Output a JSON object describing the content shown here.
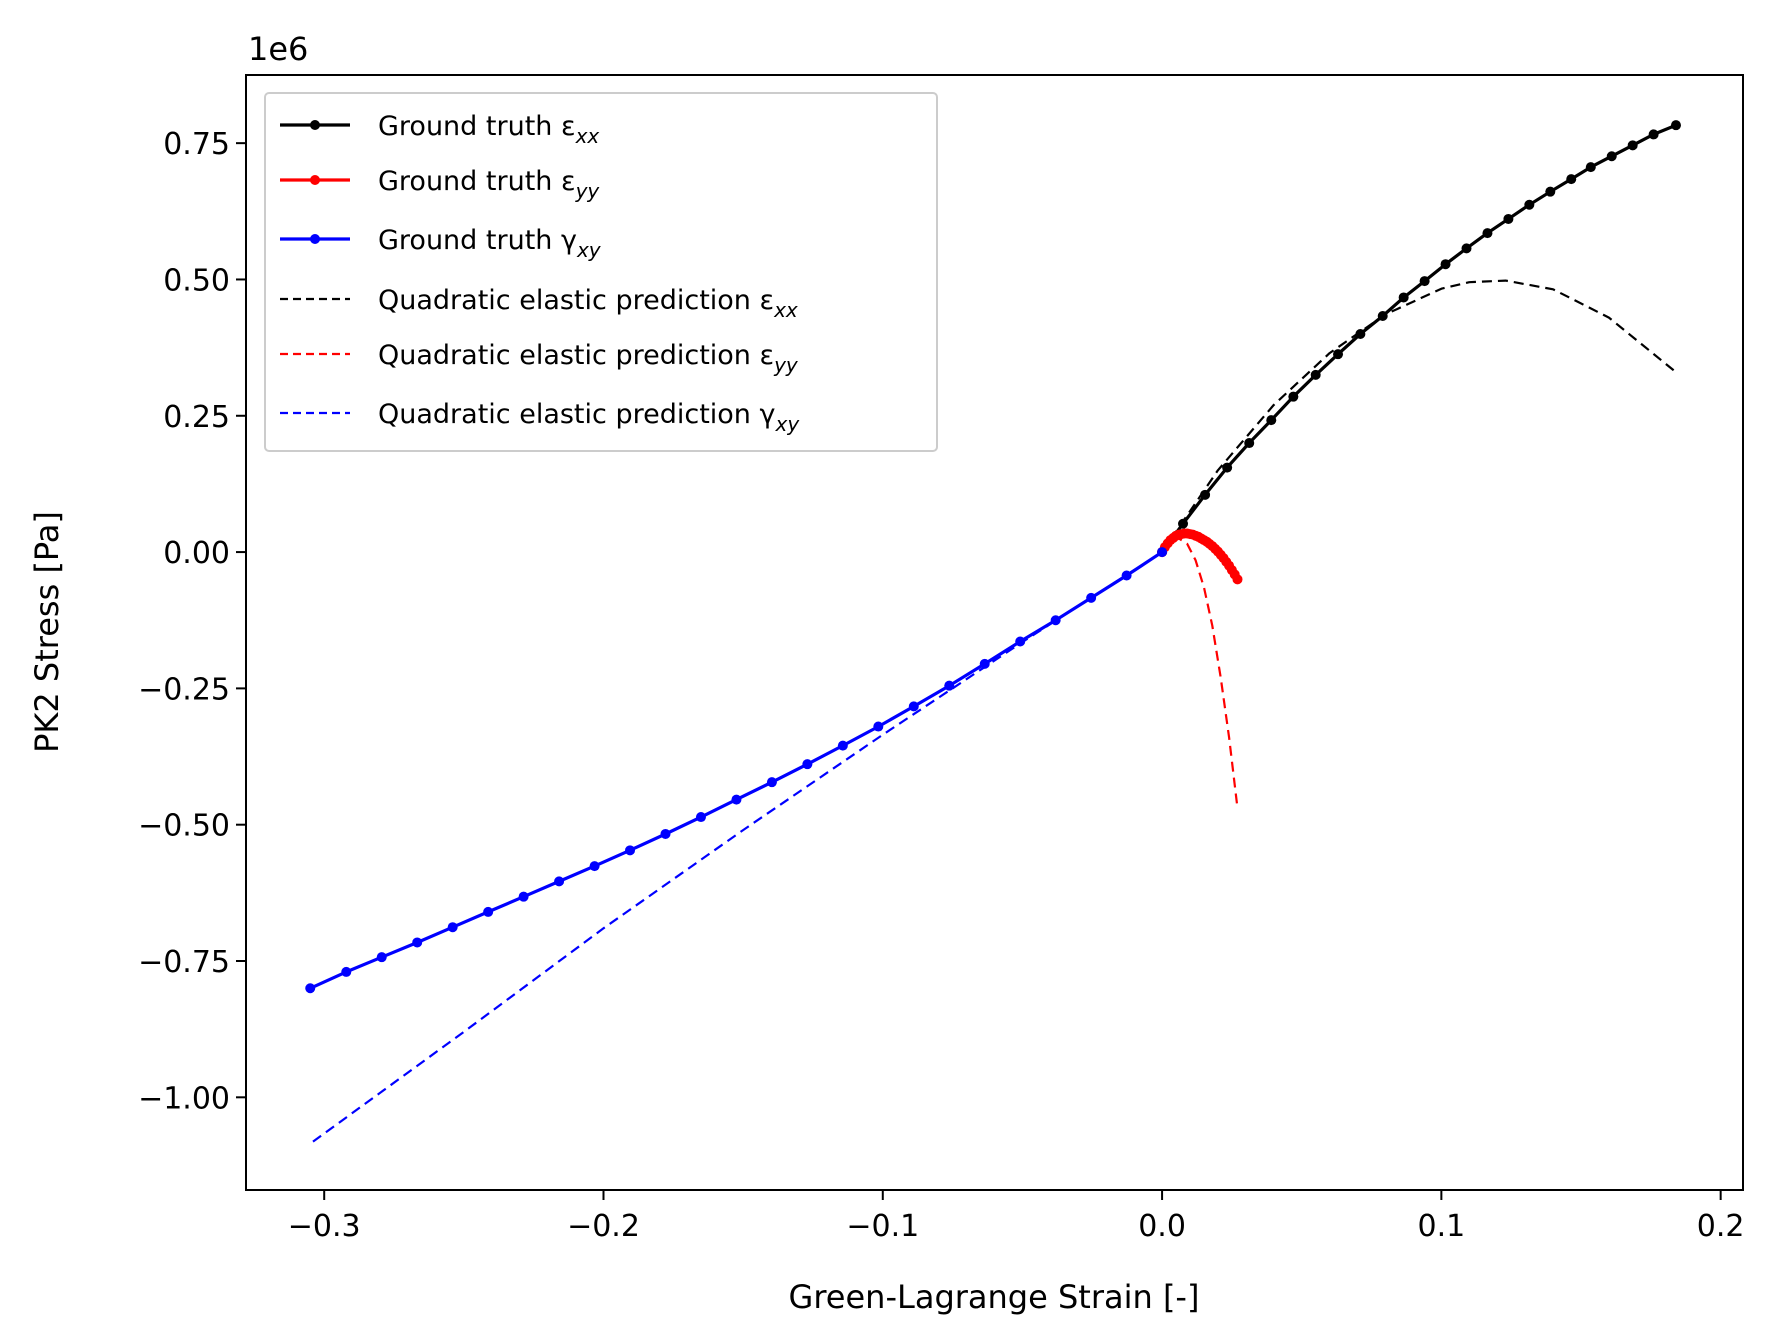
{
  "chart_data": {
    "type": "line",
    "xlabel": "Green-Lagrange Strain [-]",
    "ylabel": "PK2 Stress [Pa]",
    "y_offset_text": "1e6",
    "xlim": [
      -0.328,
      0.208
    ],
    "ylim": [
      -1.17,
      0.875
    ],
    "xticks": [
      -0.3,
      -0.2,
      -0.1,
      0.0,
      0.1,
      0.2
    ],
    "xtick_labels": [
      "−0.3",
      "−0.2",
      "−0.1",
      "0.0",
      "0.1",
      "0.2"
    ],
    "yticks": [
      0.75,
      0.5,
      0.25,
      0.0,
      -0.25,
      -0.5,
      -0.75,
      -1.0
    ],
    "ytick_labels": [
      "0.75",
      "0.50",
      "0.25",
      "0.00",
      "−0.25",
      "−0.50",
      "−0.75",
      "−1.00"
    ],
    "grid": false,
    "legend_position": "top-left",
    "series": [
      {
        "name": "Ground truth εxx",
        "legend_main": "Ground truth ε",
        "legend_sub": "xx",
        "color": "#000000",
        "style": "solid-marker",
        "x": [
          0.0,
          0.0075,
          0.0154,
          0.0233,
          0.0312,
          0.0391,
          0.047,
          0.055,
          0.063,
          0.071,
          0.079,
          0.0865,
          0.094,
          0.1015,
          0.109,
          0.1165,
          0.124,
          0.1315,
          0.139,
          0.1465,
          0.1535,
          0.161,
          0.1685,
          0.176,
          0.184
        ],
        "y": [
          0.0,
          0.052,
          0.105,
          0.155,
          0.2,
          0.242,
          0.285,
          0.325,
          0.363,
          0.4,
          0.433,
          0.467,
          0.497,
          0.528,
          0.557,
          0.585,
          0.611,
          0.637,
          0.661,
          0.684,
          0.706,
          0.726,
          0.746,
          0.766,
          0.783
        ]
      },
      {
        "name": "Ground truth εyy",
        "legend_main": "Ground truth ε",
        "legend_sub": "yy",
        "color": "#ff0000",
        "style": "solid-marker",
        "x": [
          0.0,
          0.001,
          0.002,
          0.003,
          0.004,
          0.005,
          0.006,
          0.007,
          0.008,
          0.009,
          0.01,
          0.011,
          0.012,
          0.013,
          0.014,
          0.015,
          0.016,
          0.017,
          0.018,
          0.019,
          0.02,
          0.021,
          0.022,
          0.023,
          0.024,
          0.025,
          0.026,
          0.027
        ],
        "y": [
          0.0,
          0.009,
          0.016,
          0.022,
          0.026,
          0.03,
          0.032,
          0.033,
          0.034,
          0.034,
          0.033,
          0.032,
          0.03,
          0.028,
          0.025,
          0.022,
          0.019,
          0.015,
          0.011,
          0.006,
          0.001,
          -0.005,
          -0.011,
          -0.018,
          -0.025,
          -0.033,
          -0.041,
          -0.05
        ]
      },
      {
        "name": "Ground truth γxy",
        "legend_main": "Ground truth γ",
        "legend_sub": "xy",
        "color": "#0000ff",
        "style": "solid-marker",
        "x": [
          0.0,
          -0.0127,
          -0.0254,
          -0.0381,
          -0.0508,
          -0.0635,
          -0.0762,
          -0.0889,
          -0.1016,
          -0.1143,
          -0.127,
          -0.1397,
          -0.1524,
          -0.1651,
          -0.1778,
          -0.1905,
          -0.2032,
          -0.2159,
          -0.2286,
          -0.2413,
          -0.254,
          -0.2667,
          -0.2794,
          -0.2921,
          -0.305
        ],
        "y": [
          0.0,
          -0.043,
          -0.084,
          -0.125,
          -0.164,
          -0.205,
          -0.245,
          -0.283,
          -0.32,
          -0.355,
          -0.389,
          -0.422,
          -0.454,
          -0.486,
          -0.517,
          -0.547,
          -0.576,
          -0.604,
          -0.632,
          -0.66,
          -0.688,
          -0.716,
          -0.743,
          -0.77,
          -0.8
        ]
      },
      {
        "name": "Quadratic elastic prediction εxx",
        "legend_main": "Quadratic elastic prediction ε",
        "legend_sub": "xx",
        "color": "#000000",
        "style": "dashed",
        "x": [
          0.0,
          0.02,
          0.04,
          0.06,
          0.08,
          0.1,
          0.11,
          0.123,
          0.14,
          0.16,
          0.184
        ],
        "y": [
          0.0,
          0.15,
          0.27,
          0.365,
          0.436,
          0.483,
          0.495,
          0.498,
          0.482,
          0.43,
          0.33
        ]
      },
      {
        "name": "Quadratic elastic prediction εyy",
        "legend_main": "Quadratic elastic prediction ε",
        "legend_sub": "yy",
        "color": "#ff0000",
        "style": "dashed",
        "x": [
          0.0,
          0.003,
          0.006,
          0.009,
          0.012,
          0.015,
          0.018,
          0.021,
          0.024,
          0.027
        ],
        "y": [
          0.0,
          0.02,
          0.025,
          0.015,
          -0.015,
          -0.065,
          -0.135,
          -0.23,
          -0.34,
          -0.47
        ]
      },
      {
        "name": "Quadratic elastic prediction γxy",
        "legend_main": "Quadratic elastic prediction γ",
        "legend_sub": "xy",
        "color": "#0000ff",
        "style": "dashed",
        "x": [
          0.0,
          -0.05,
          -0.1,
          -0.15,
          -0.2,
          -0.25,
          -0.305
        ],
        "y": [
          0.0,
          -0.165,
          -0.335,
          -0.51,
          -0.69,
          -0.88,
          -1.085
        ]
      }
    ]
  }
}
